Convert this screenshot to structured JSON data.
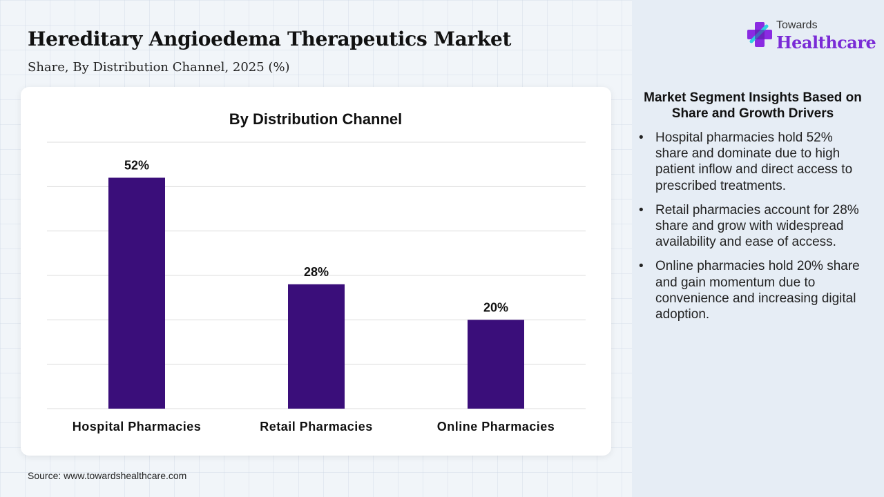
{
  "header": {
    "title": "Hereditary Angioedema Therapeutics Market",
    "subtitle": "Share, By Distribution Channel, 2025 (%)"
  },
  "logo": {
    "top_text": "Towards",
    "main_text": "Healthcare"
  },
  "chart_data": {
    "type": "bar",
    "title": "By Distribution Channel",
    "categories": [
      "Hospital Pharmacies",
      "Retail Pharmacies",
      "Online Pharmacies"
    ],
    "values": [
      52,
      28,
      20
    ],
    "value_labels": [
      "52%",
      "28%",
      "20%"
    ],
    "ylim": [
      0,
      60
    ],
    "grid": true,
    "xlabel": "",
    "ylabel": "",
    "bar_color": "#3a0e7a"
  },
  "insights": {
    "title": "Market Segment Insights Based on Share and Growth Drivers",
    "items": [
      "Hospital pharmacies hold 52% share and dominate due to high patient inflow and direct access to prescribed treatments.",
      "Retail pharmacies account for 28% share and grow with widespread availability and ease of access.",
      "Online pharmacies hold 20% share and gain momentum due to convenience and increasing digital adoption."
    ]
  },
  "footer": {
    "source": "Source: www.towardshealthcare.com"
  }
}
